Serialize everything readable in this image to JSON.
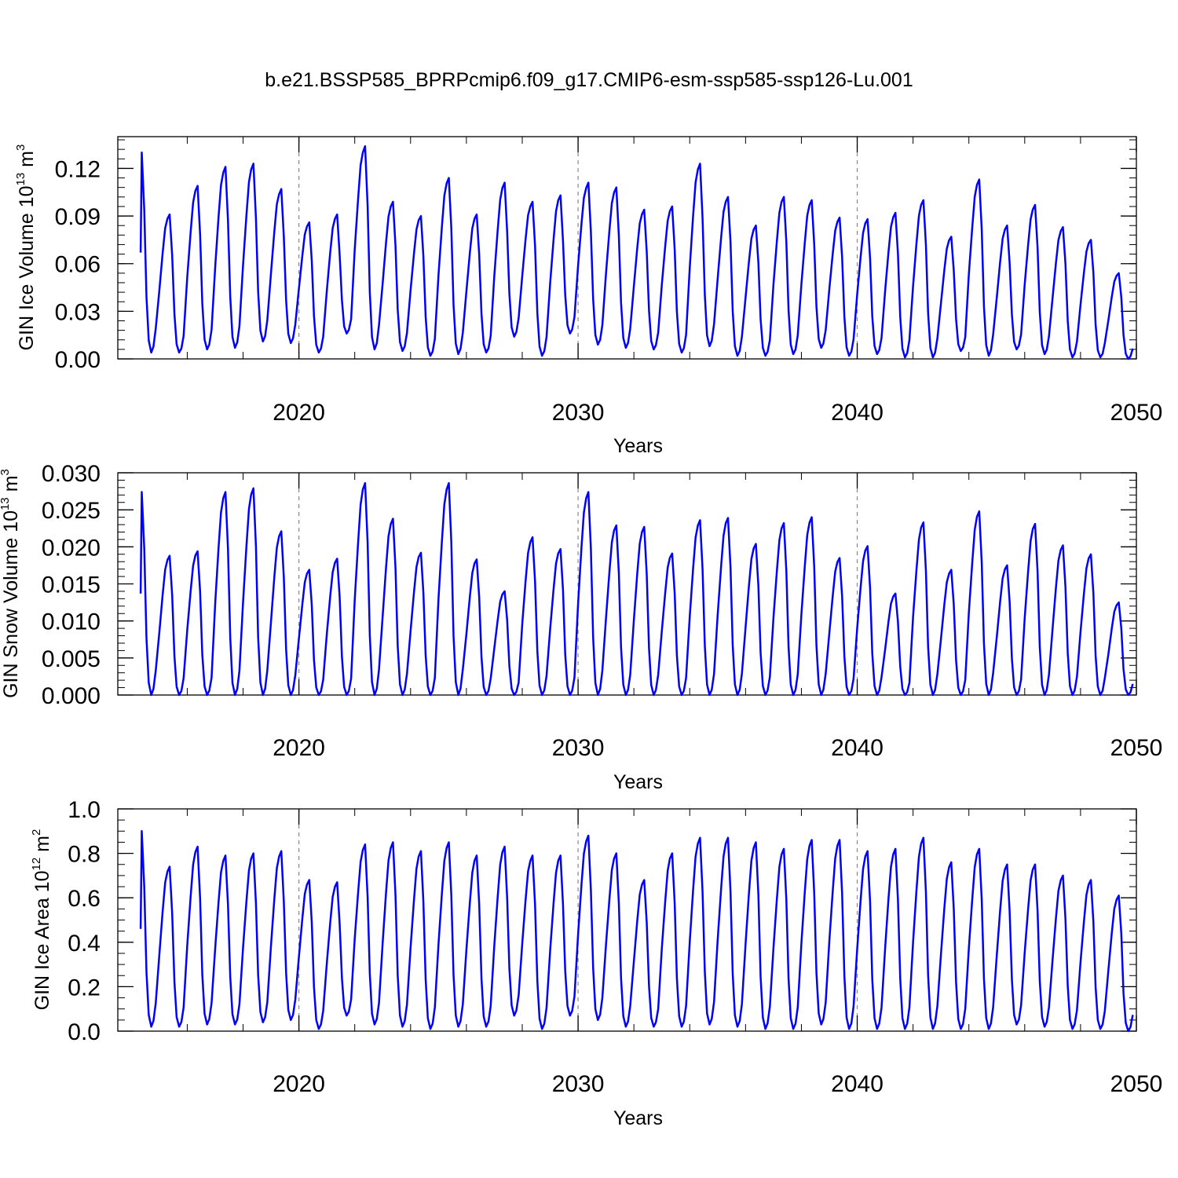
{
  "figure": {
    "title": "b.e21.BSSP585_BPRPcmip6.f09_g17.CMIP6-esm-ssp585-ssp126-Lu.001",
    "line_color": "#0000ff",
    "ref_line_color": "#888888"
  },
  "chart_data": [
    {
      "type": "line",
      "name": "gin-ice-volume",
      "ylabel": {
        "text": "GIN Ice Volume 10",
        "exp": "13",
        "unit": " m",
        "unit_exp": "3"
      },
      "xlabel": "Years",
      "xlim": [
        2014.3,
        2050
      ],
      "ylim": [
        0,
        0.14
      ],
      "x_ticks": [
        2020,
        2030,
        2040,
        2050
      ],
      "x_tick_labels": [
        "2020",
        "2030",
        "2040",
        "2050"
      ],
      "y_ticks": [
        0,
        0.03,
        0.06,
        0.09,
        0.12
      ],
      "y_tick_labels": [
        "0.00",
        "0.03",
        "0.06",
        "0.09",
        "0.12"
      ],
      "y_minor_step": 0.006,
      "x_minor_step": 2,
      "grid_x": [
        2020,
        2030,
        2040
      ],
      "series": [
        {
          "name": "ice-volume",
          "start_year": 2014.33,
          "peaks": [
            0.13,
            0.091,
            0.109,
            0.121,
            0.123,
            0.107,
            0.086,
            0.091,
            0.134,
            0.099,
            0.09,
            0.114,
            0.091,
            0.111,
            0.099,
            0.103,
            0.111,
            0.108,
            0.094,
            0.096,
            0.123,
            0.102,
            0.084,
            0.102,
            0.1,
            0.089,
            0.088,
            0.092,
            0.1,
            0.077,
            0.113,
            0.084,
            0.097,
            0.083,
            0.075,
            0.054
          ],
          "troughs": [
            0.004,
            0.004,
            0.006,
            0.007,
            0.011,
            0.01,
            0.004,
            0.016,
            0.006,
            0.005,
            0.002,
            0.003,
            0.004,
            0.014,
            0.002,
            0.016,
            0.009,
            0.007,
            0.006,
            0.004,
            0.008,
            0.002,
            0.002,
            0.003,
            0.007,
            0.002,
            0.003,
            0.001,
            0.001,
            0.005,
            0.002,
            0.006,
            0.003,
            0.001,
            0.001,
            0.0
          ]
        }
      ]
    },
    {
      "type": "line",
      "name": "gin-snow-volume",
      "ylabel": {
        "text": "GIN Snow Volume 10",
        "exp": "13",
        "unit": " m",
        "unit_exp": "3"
      },
      "xlabel": "Years",
      "xlim": [
        2014.3,
        2050
      ],
      "ylim": [
        0,
        0.03
      ],
      "x_ticks": [
        2020,
        2030,
        2040,
        2050
      ],
      "x_tick_labels": [
        "2020",
        "2030",
        "2040",
        "2050"
      ],
      "y_ticks": [
        0,
        0.005,
        0.01,
        0.015,
        0.02,
        0.025,
        0.03
      ],
      "y_tick_labels": [
        "0.000",
        "0.005",
        "0.010",
        "0.015",
        "0.020",
        "0.025",
        "0.030"
      ],
      "y_minor_step": 0.001,
      "x_minor_step": 2,
      "grid_x": [
        2020,
        2030,
        2040
      ],
      "series": [
        {
          "name": "snow-volume",
          "start_year": 2014.33,
          "peaks": [
            0.0274,
            0.0188,
            0.0194,
            0.0274,
            0.0279,
            0.0221,
            0.0169,
            0.0184,
            0.0286,
            0.0238,
            0.0192,
            0.0286,
            0.0183,
            0.014,
            0.0213,
            0.0197,
            0.0274,
            0.0229,
            0.0227,
            0.0191,
            0.0236,
            0.0239,
            0.0204,
            0.0232,
            0.024,
            0.0185,
            0.0201,
            0.0137,
            0.0233,
            0.0169,
            0.0248,
            0.0175,
            0.0231,
            0.0202,
            0.019,
            0.0125
          ],
          "troughs": [
            0.0,
            0.0,
            0.0,
            0.0,
            0.0,
            0.0,
            0.0,
            0.0,
            0.0,
            0.0,
            0.0,
            0.0,
            0.0,
            0.0,
            0.0,
            0.0,
            0.0,
            0.0,
            0.0,
            0.0,
            0.0,
            0.0,
            0.0,
            0.0,
            0.0,
            0.0,
            0.0,
            0.0,
            0.0,
            0.0,
            0.0,
            0.0,
            0.0,
            0.0,
            0.0,
            0.0
          ]
        }
      ]
    },
    {
      "type": "line",
      "name": "gin-ice-area",
      "ylabel": {
        "text": "GIN Ice Area 10",
        "exp": "12",
        "unit": " m",
        "unit_exp": "2"
      },
      "xlabel": "Years",
      "xlim": [
        2014.3,
        2050
      ],
      "ylim": [
        0,
        1.0
      ],
      "x_ticks": [
        2020,
        2030,
        2040,
        2050
      ],
      "x_tick_labels": [
        "2020",
        "2030",
        "2040",
        "2050"
      ],
      "y_ticks": [
        0,
        0.2,
        0.4,
        0.6,
        0.8,
        1.0
      ],
      "y_tick_labels": [
        "0.0",
        "0.2",
        "0.4",
        "0.6",
        "0.8",
        "1.0"
      ],
      "y_minor_step": 0.05,
      "x_minor_step": 2,
      "grid_x": [
        2020,
        2030,
        2040
      ],
      "series": [
        {
          "name": "ice-area",
          "start_year": 2014.33,
          "peaks": [
            0.9,
            0.74,
            0.83,
            0.79,
            0.8,
            0.81,
            0.68,
            0.67,
            0.84,
            0.85,
            0.81,
            0.85,
            0.79,
            0.83,
            0.79,
            0.79,
            0.88,
            0.8,
            0.68,
            0.8,
            0.87,
            0.87,
            0.85,
            0.82,
            0.86,
            0.86,
            0.81,
            0.82,
            0.87,
            0.76,
            0.82,
            0.75,
            0.75,
            0.7,
            0.68,
            0.61
          ],
          "troughs": [
            0.02,
            0.02,
            0.03,
            0.03,
            0.04,
            0.05,
            0.01,
            0.07,
            0.03,
            0.02,
            0.01,
            0.02,
            0.02,
            0.07,
            0.01,
            0.07,
            0.05,
            0.02,
            0.02,
            0.02,
            0.03,
            0.02,
            0.01,
            0.01,
            0.03,
            0.01,
            0.01,
            0.01,
            0.01,
            0.01,
            0.01,
            0.03,
            0.02,
            0.01,
            0.01,
            0.0
          ]
        }
      ]
    }
  ]
}
